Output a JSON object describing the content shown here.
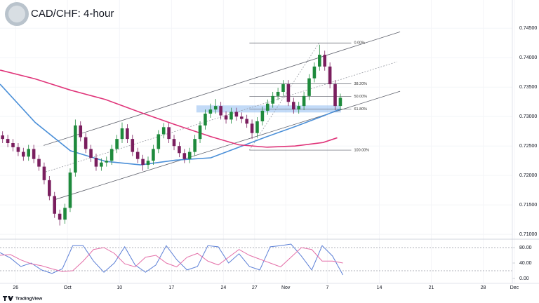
{
  "chart_data": {
    "type": "candlestick",
    "title": "CAD/CHF: 4-hour",
    "watermark": "TradingView",
    "xlim": [
      -1.5,
      47.8
    ],
    "xticks": [
      {
        "value": 0,
        "label": "26"
      },
      {
        "value": 5,
        "label": "Oct"
      },
      {
        "value": 10,
        "label": "10"
      },
      {
        "value": 15,
        "label": "17"
      },
      {
        "value": 20,
        "label": "24"
      },
      {
        "value": 23,
        "label": "27"
      },
      {
        "value": 26,
        "label": "Nov"
      },
      {
        "value": 30,
        "label": "7"
      },
      {
        "value": 35,
        "label": "14"
      },
      {
        "value": 40,
        "label": "21"
      },
      {
        "value": 45,
        "label": "28"
      },
      {
        "value": 48,
        "label": "Dec"
      }
    ],
    "ylim": [
      0.7093,
      0.7498
    ],
    "yticks": [
      {
        "value": 0.745,
        "label": "0.74500"
      },
      {
        "value": 0.74,
        "label": "0.74000"
      },
      {
        "value": 0.735,
        "label": "0.73500"
      },
      {
        "value": 0.73,
        "label": "0.73000"
      },
      {
        "value": 0.725,
        "label": "0.72500"
      },
      {
        "value": 0.72,
        "label": "0.72000"
      },
      {
        "value": 0.715,
        "label": "0.71500"
      },
      {
        "value": 0.71,
        "label": "0.71000"
      }
    ],
    "up_color": "#1e8a3c",
    "down_color": "#7a1e5e",
    "ohlc": {
      "x": [
        -1.25,
        -0.75,
        -0.25,
        0.25,
        0.75,
        1.25,
        1.75,
        2.25,
        2.75,
        3.25,
        3.75,
        4.25,
        4.75,
        5.25,
        5.75,
        6.25,
        6.75,
        7.25,
        7.75,
        8.25,
        8.75,
        9.25,
        9.75,
        10.25,
        10.75,
        11.25,
        11.75,
        12.25,
        12.75,
        13.25,
        13.75,
        14.25,
        14.75,
        15.25,
        15.75,
        16.25,
        16.75,
        17.25,
        17.75,
        18.25,
        18.75,
        19.25,
        19.75,
        20.25,
        20.75,
        21.25,
        21.75,
        22.25,
        22.75,
        23.25,
        23.75,
        24.25,
        24.75,
        25.25,
        25.75,
        26.25,
        26.75,
        27.25,
        27.75,
        28.25,
        28.75,
        29.25,
        29.75,
        30.25,
        30.75,
        31.25
      ],
      "open": [
        0.7268,
        0.7262,
        0.7255,
        0.7248,
        0.724,
        0.7232,
        0.7245,
        0.7228,
        0.7215,
        0.7192,
        0.7165,
        0.7135,
        0.7125,
        0.7145,
        0.7205,
        0.7285,
        0.7265,
        0.7245,
        0.723,
        0.7215,
        0.7222,
        0.7225,
        0.7245,
        0.7262,
        0.728,
        0.7262,
        0.724,
        0.7228,
        0.7218,
        0.7225,
        0.7245,
        0.727,
        0.7282,
        0.7262,
        0.725,
        0.7238,
        0.7228,
        0.724,
        0.7262,
        0.7285,
        0.7305,
        0.7312,
        0.7318,
        0.7302,
        0.7295,
        0.7308,
        0.73,
        0.7296,
        0.7288,
        0.7272,
        0.7292,
        0.731,
        0.7322,
        0.7335,
        0.7342,
        0.7355,
        0.7325,
        0.7312,
        0.7318,
        0.7335,
        0.7365,
        0.7385,
        0.7405,
        0.7385,
        0.7355,
        0.7318
      ],
      "high": [
        0.7275,
        0.7269,
        0.7262,
        0.7255,
        0.7247,
        0.7252,
        0.7252,
        0.7235,
        0.7222,
        0.7199,
        0.7172,
        0.7142,
        0.7152,
        0.7212,
        0.7295,
        0.7292,
        0.7272,
        0.7252,
        0.7237,
        0.7229,
        0.7232,
        0.7252,
        0.7269,
        0.729,
        0.7287,
        0.7269,
        0.7247,
        0.7235,
        0.7232,
        0.7252,
        0.7277,
        0.7289,
        0.7289,
        0.7269,
        0.7257,
        0.7245,
        0.7247,
        0.7269,
        0.7292,
        0.7312,
        0.7322,
        0.733,
        0.7325,
        0.7309,
        0.7315,
        0.7315,
        0.7307,
        0.7303,
        0.7295,
        0.7299,
        0.7317,
        0.7329,
        0.7342,
        0.7349,
        0.7362,
        0.7362,
        0.7332,
        0.7325,
        0.7342,
        0.7372,
        0.7392,
        0.7422,
        0.7412,
        0.7392,
        0.7362,
        0.7339
      ],
      "low": [
        0.7255,
        0.7248,
        0.7241,
        0.7233,
        0.7225,
        0.7225,
        0.7221,
        0.7208,
        0.7185,
        0.7158,
        0.7128,
        0.7115,
        0.7118,
        0.7138,
        0.7198,
        0.7258,
        0.7238,
        0.7223,
        0.7208,
        0.7208,
        0.7215,
        0.7218,
        0.7238,
        0.7255,
        0.7255,
        0.7233,
        0.7221,
        0.7208,
        0.7211,
        0.7218,
        0.7238,
        0.7263,
        0.7255,
        0.7243,
        0.7231,
        0.7221,
        0.7221,
        0.7233,
        0.7255,
        0.7278,
        0.7298,
        0.7305,
        0.7295,
        0.7288,
        0.7288,
        0.7293,
        0.7289,
        0.7281,
        0.7262,
        0.7265,
        0.7285,
        0.7303,
        0.7315,
        0.7328,
        0.7335,
        0.7318,
        0.7305,
        0.7305,
        0.7311,
        0.7328,
        0.7358,
        0.7378,
        0.7378,
        0.7348,
        0.7311,
        0.7311
      ],
      "close": [
        0.7262,
        0.7255,
        0.7248,
        0.724,
        0.7232,
        0.7245,
        0.7228,
        0.7215,
        0.7192,
        0.7165,
        0.7135,
        0.7125,
        0.7145,
        0.7205,
        0.7285,
        0.7265,
        0.7245,
        0.723,
        0.7215,
        0.7222,
        0.7225,
        0.7245,
        0.7262,
        0.728,
        0.7262,
        0.724,
        0.7228,
        0.7218,
        0.7225,
        0.7245,
        0.727,
        0.7282,
        0.7262,
        0.725,
        0.7238,
        0.7228,
        0.724,
        0.7262,
        0.7285,
        0.7305,
        0.7312,
        0.7318,
        0.7302,
        0.7295,
        0.7308,
        0.73,
        0.7296,
        0.7288,
        0.7272,
        0.7292,
        0.731,
        0.7322,
        0.7335,
        0.7342,
        0.7355,
        0.7325,
        0.7312,
        0.7318,
        0.7335,
        0.7365,
        0.7385,
        0.7405,
        0.7385,
        0.7355,
        0.7318,
        0.7332
      ]
    },
    "series": [
      {
        "color": "#4a8fd8",
        "x": [
          -1.49,
          1.89,
          5.27,
          8.65,
          12.03,
          15.41,
          18.78,
          21.49,
          24.19,
          26.89,
          29.59,
          31.28
        ],
        "values": [
          0.7355,
          0.729,
          0.7242,
          0.7224,
          0.7218,
          0.7226,
          0.723,
          0.7248,
          0.7266,
          0.7283,
          0.7301,
          0.7313
        ]
      },
      {
        "color": "#e0357a",
        "x": [
          -1.49,
          1.89,
          5.27,
          8.65,
          12.03,
          15.41,
          18.78,
          21.49,
          24.19,
          26.89,
          29.59,
          30.95
        ],
        "values": [
          0.7379,
          0.7364,
          0.7345,
          0.7329,
          0.7307,
          0.7286,
          0.7266,
          0.7252,
          0.7248,
          0.725,
          0.7256,
          0.7264
        ]
      }
    ],
    "trendlines": [
      {
        "x": [
          2.7,
          37.0
        ],
        "y": [
          0.7251,
          0.7444
        ],
        "dashed": false
      },
      {
        "x": [
          3.6,
          37.0
        ],
        "y": [
          0.7158,
          0.7343
        ],
        "dashed": false
      },
      {
        "x": [
          2.9,
          36.7
        ],
        "y": [
          0.7206,
          0.7393
        ],
        "dashed": true
      },
      {
        "x": [
          22.5,
          29.2
        ],
        "y": [
          0.7243,
          0.7425
        ],
        "dashed": true
      }
    ],
    "zone": {
      "x": [
        17.4,
        31.3
      ],
      "y": [
        0.7307,
        0.7319
      ],
      "color": "#8fbcf0"
    },
    "fib": {
      "x": [
        22.5,
        32.3
      ],
      "high": 0.7425,
      "low": 0.7243,
      "levels": [
        {
          "value": 0,
          "label": "0.00%"
        },
        {
          "value": 38.2,
          "label": "38.20%"
        },
        {
          "value": 50,
          "label": "50.00%"
        },
        {
          "value": 61.8,
          "label": "61.80%"
        },
        {
          "value": 100,
          "label": "100.00%"
        }
      ]
    },
    "stochastic": {
      "ylim": [
        -10,
        100
      ],
      "yticks": [
        {
          "value": 80,
          "label": "80.00"
        },
        {
          "value": 40,
          "label": "40.00"
        },
        {
          "value": 0,
          "label": "0.00"
        }
      ],
      "levels": [
        80,
        20
      ],
      "x": [
        -1.5,
        -0.5,
        0.5,
        1.5,
        2.5,
        3.5,
        4.5,
        5.5,
        6.5,
        7.5,
        8.5,
        9.5,
        10.5,
        11.5,
        12.5,
        13.5,
        14.5,
        15.5,
        16.5,
        17.5,
        18.5,
        19.5,
        20.5,
        21.5,
        22.5,
        23.5,
        24.5,
        25.5,
        26.5,
        27.5,
        28.5,
        29.5,
        30.5,
        31.5
      ],
      "series": [
        {
          "color": "#5b7fd6",
          "values": [
            67,
            53,
            31,
            40,
            22,
            13,
            25,
            85,
            85,
            45,
            16,
            40,
            82,
            35,
            16,
            35,
            85,
            49,
            22,
            31,
            85,
            82,
            40,
            64,
            31,
            22,
            82,
            85,
            89,
            58,
            22,
            85,
            58,
            9
          ]
        },
        {
          "color": "#e46fa8",
          "values": [
            60,
            62,
            48,
            38,
            33,
            25,
            18,
            20,
            45,
            75,
            80,
            65,
            38,
            30,
            55,
            60,
            40,
            30,
            55,
            65,
            45,
            35,
            55,
            75,
            60,
            50,
            40,
            30,
            55,
            80,
            75,
            45,
            45,
            40
          ]
        }
      ]
    }
  }
}
